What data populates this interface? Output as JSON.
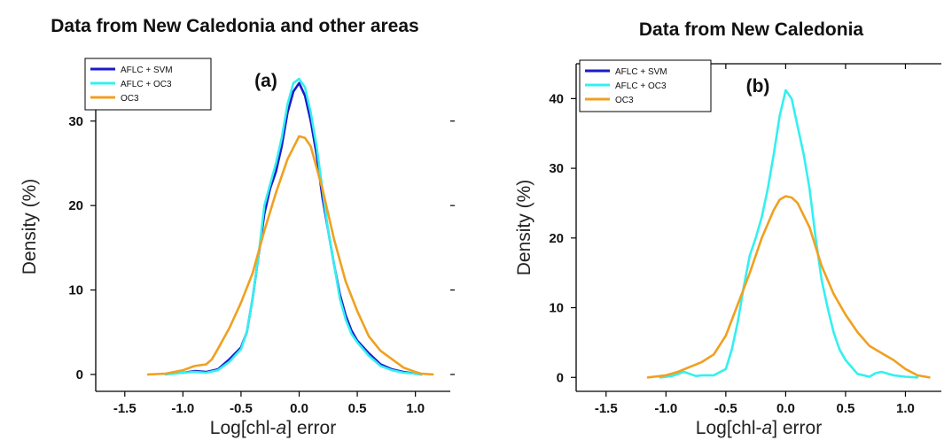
{
  "chart_data": [
    {
      "type": "line",
      "title": "Data from New Caledonia and other areas",
      "panel_label": "(a)",
      "xlabel_prefix": "Log[chl-",
      "xlabel_italic": "a",
      "xlabel_suffix": "] error",
      "ylabel": "Density (%)",
      "xlim": [
        -1.75,
        1.3
      ],
      "ylim": [
        -2,
        37
      ],
      "xticks": [
        "-1.5",
        "-1.0",
        "-0.5",
        "0.0",
        "0.5",
        "1.0"
      ],
      "xtick_values": [
        -1.5,
        -1.0,
        -0.5,
        0.0,
        0.5,
        1.0
      ],
      "yticks": [
        "0",
        "10",
        "20",
        "30"
      ],
      "ytick_values": [
        0,
        10,
        20,
        30
      ],
      "legend": {
        "placement": "top-left"
      },
      "series": [
        {
          "name": "AFLC + SVM",
          "color": "#1a1acc",
          "x": [
            -1.0,
            -0.9,
            -0.8,
            -0.7,
            -0.6,
            -0.5,
            -0.45,
            -0.4,
            -0.35,
            -0.3,
            -0.25,
            -0.2,
            -0.15,
            -0.1,
            -0.05,
            0.0,
            0.05,
            0.1,
            0.15,
            0.2,
            0.25,
            0.3,
            0.35,
            0.4,
            0.45,
            0.5,
            0.6,
            0.7,
            0.8,
            0.9,
            1.0,
            1.05
          ],
          "y": [
            0.2,
            0.4,
            0.3,
            0.6,
            1.8,
            3.2,
            5,
            9,
            14,
            19,
            22,
            24,
            27,
            31,
            33.5,
            34.5,
            33,
            30,
            26,
            21,
            17,
            13,
            9.5,
            7,
            5.2,
            4,
            2.5,
            1.2,
            0.6,
            0.3,
            0.1,
            0
          ]
        },
        {
          "name": "AFLC + OC3",
          "color": "#33f0f0",
          "x": [
            -1.15,
            -1.0,
            -0.9,
            -0.8,
            -0.7,
            -0.6,
            -0.5,
            -0.45,
            -0.4,
            -0.35,
            -0.3,
            -0.25,
            -0.2,
            -0.15,
            -0.1,
            -0.05,
            0.0,
            0.05,
            0.1,
            0.15,
            0.2,
            0.25,
            0.3,
            0.35,
            0.4,
            0.45,
            0.5,
            0.6,
            0.7,
            0.8,
            0.9,
            1.0,
            1.05
          ],
          "y": [
            0,
            0.2,
            0.3,
            0.2,
            0.5,
            1.5,
            3,
            5,
            9,
            14,
            20,
            22.5,
            25,
            28,
            32,
            34.5,
            35,
            34,
            31,
            27,
            22,
            17,
            13,
            9,
            6.5,
            4.8,
            3.8,
            2.2,
            1.0,
            0.5,
            0.2,
            0.1,
            0
          ]
        },
        {
          "name": "OC3",
          "color": "#f0a020",
          "x": [
            -1.3,
            -1.15,
            -1.0,
            -0.9,
            -0.8,
            -0.75,
            -0.7,
            -0.6,
            -0.5,
            -0.4,
            -0.3,
            -0.2,
            -0.1,
            0.0,
            0.05,
            0.1,
            0.2,
            0.3,
            0.4,
            0.5,
            0.6,
            0.7,
            0.8,
            0.9,
            1.0,
            1.05,
            1.15
          ],
          "y": [
            0,
            0.1,
            0.5,
            1.0,
            1.2,
            1.8,
            3.0,
            5.5,
            8.5,
            12,
            17,
            21.5,
            25.5,
            28.2,
            28,
            27,
            22,
            16,
            11,
            7.5,
            4.5,
            2.8,
            1.8,
            0.8,
            0.3,
            0.1,
            0
          ]
        }
      ]
    },
    {
      "type": "line",
      "title": "Data from New Caledonia",
      "panel_label": "(b)",
      "xlabel_prefix": "Log[chl-",
      "xlabel_italic": "a",
      "xlabel_suffix": "] error",
      "ylabel": "Density (%)",
      "xlim": [
        -1.75,
        1.3
      ],
      "ylim": [
        -2,
        45
      ],
      "xticks": [
        "-1.5",
        "-1.0",
        "-0.5",
        "0.0",
        "0.5",
        "1.0"
      ],
      "xtick_values": [
        -1.5,
        -1.0,
        -0.5,
        0.0,
        0.5,
        1.0
      ],
      "yticks": [
        "0",
        "10",
        "20",
        "30",
        "40"
      ],
      "ytick_values": [
        0,
        10,
        20,
        30,
        40
      ],
      "legend": {
        "placement": "top-left"
      },
      "series": [
        {
          "name": "AFLC + SVM",
          "color": "#1a1acc",
          "x": [],
          "y": []
        },
        {
          "name": "AFLC + OC3",
          "color": "#33f0f0",
          "x": [
            -1.05,
            -0.95,
            -0.85,
            -0.8,
            -0.75,
            -0.7,
            -0.6,
            -0.5,
            -0.45,
            -0.4,
            -0.35,
            -0.3,
            -0.25,
            -0.2,
            -0.15,
            -0.1,
            -0.05,
            0.0,
            0.05,
            0.1,
            0.15,
            0.2,
            0.25,
            0.3,
            0.35,
            0.4,
            0.45,
            0.5,
            0.6,
            0.7,
            0.75,
            0.8,
            0.9,
            1.0,
            1.1
          ],
          "y": [
            0,
            0.2,
            0.8,
            0.5,
            0.2,
            0.3,
            0.3,
            1.2,
            4,
            8,
            13,
            17.5,
            20,
            23,
            27,
            32,
            37.5,
            41.2,
            40,
            36,
            32,
            27,
            20,
            14,
            10,
            6.5,
            4,
            2.5,
            0.5,
            0.1,
            0.6,
            0.8,
            0.3,
            0.1,
            0
          ]
        },
        {
          "name": "OC3",
          "color": "#f0a020",
          "x": [
            -1.15,
            -1.0,
            -0.9,
            -0.8,
            -0.7,
            -0.6,
            -0.5,
            -0.4,
            -0.3,
            -0.2,
            -0.1,
            -0.05,
            0.0,
            0.05,
            0.1,
            0.2,
            0.3,
            0.4,
            0.5,
            0.6,
            0.7,
            0.8,
            0.9,
            1.0,
            1.1,
            1.2
          ],
          "y": [
            0,
            0.3,
            0.8,
            1.5,
            2.2,
            3.3,
            6,
            10.5,
            15,
            20,
            24,
            25.5,
            26,
            25.8,
            25,
            21.5,
            16,
            12,
            9,
            6.5,
            4.5,
            3.5,
            2.5,
            1.2,
            0.3,
            0
          ]
        }
      ]
    }
  ]
}
